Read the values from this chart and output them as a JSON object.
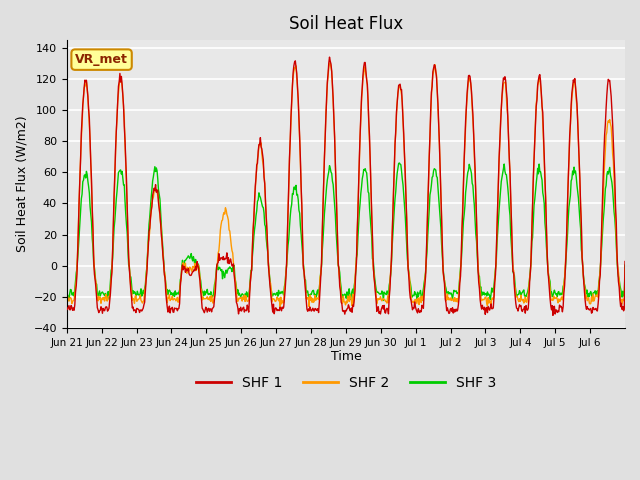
{
  "title": "Soil Heat Flux",
  "ylabel": "Soil Heat Flux (W/m2)",
  "xlabel": "Time",
  "ylim": [
    -40,
    145
  ],
  "yticks": [
    -40,
    -20,
    0,
    20,
    40,
    60,
    80,
    100,
    120,
    140
  ],
  "background_color": "#e0e0e0",
  "plot_bg_color": "#e8e8e8",
  "grid_color": "white",
  "colors": {
    "SHF 1": "#cc0000",
    "SHF 2": "#ff9900",
    "SHF 3": "#00cc00"
  },
  "legend_label": "VR_met",
  "xtick_labels": [
    "Jun 21",
    "Jun 22",
    "Jun 23",
    "Jun 24",
    "Jun 25",
    "Jun 26",
    "Jun 27",
    "Jun 28",
    "Jun 29",
    "Jun 30",
    "Jul 1",
    "Jul 2",
    "Jul 3",
    "Jul 4",
    "Jul 5",
    "Jul 6"
  ],
  "n_days": 16
}
